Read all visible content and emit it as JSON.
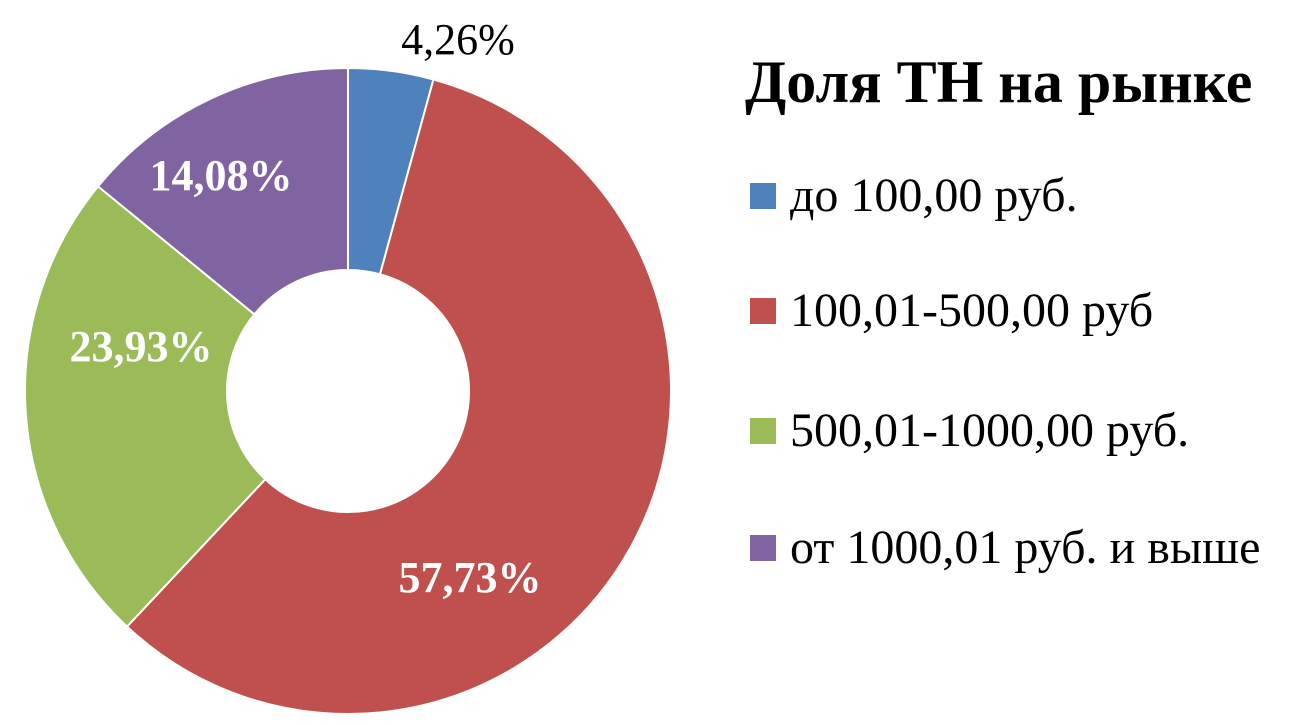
{
  "chart_data": {
    "type": "pie",
    "variant": "donut",
    "title": "Доля ТН на рынке",
    "categories": [
      "до 100,00 руб.",
      "100,01-500,00 руб",
      "500,01-1000,00 руб.",
      "от 1000,01 руб. и выше"
    ],
    "values": [
      4.26,
      57.73,
      23.93,
      14.08
    ],
    "data_labels": [
      "4,26%",
      "57,73%",
      "23,93%",
      "14,08%"
    ],
    "colors": [
      "#4F81BD",
      "#C0504D",
      "#9BBB59",
      "#8064A2"
    ],
    "legend_position": "right"
  }
}
